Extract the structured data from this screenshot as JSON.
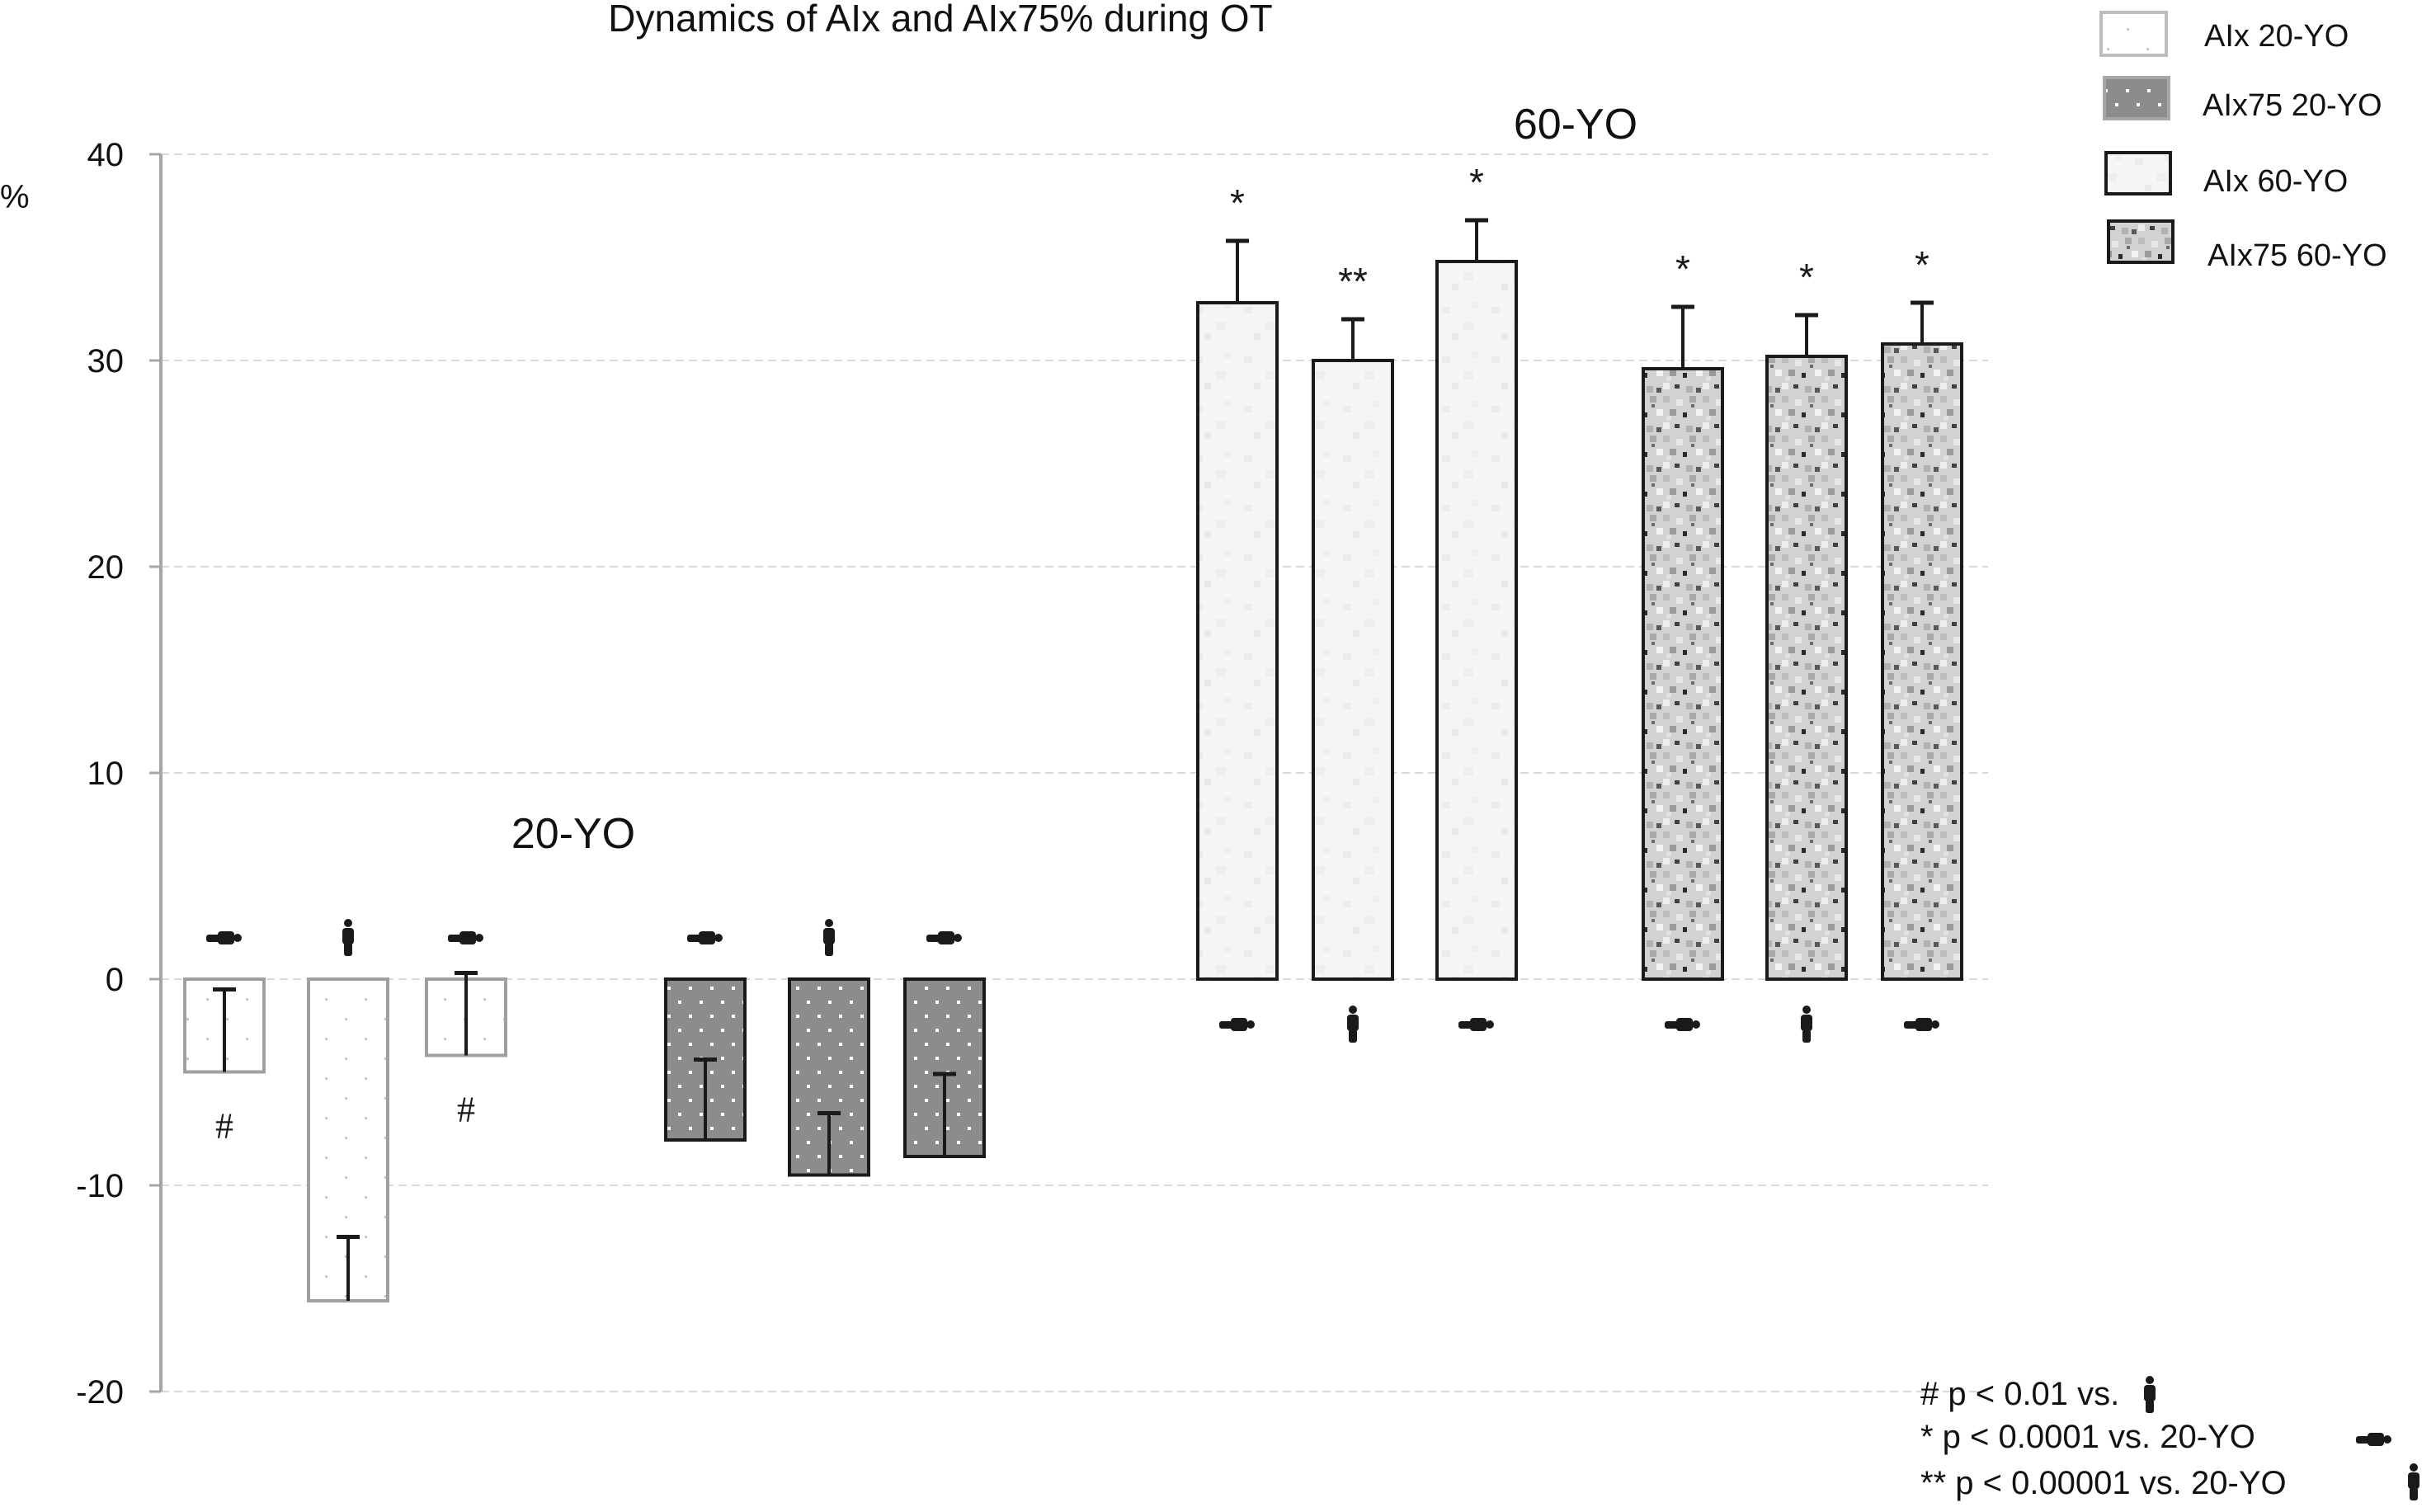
{
  "chart_data": {
    "type": "bar",
    "title": "Dynamics of AIx and AIx75% during OT",
    "ylabel": "%",
    "xlabel": "",
    "ylim": [
      -20,
      40
    ],
    "yticks": [
      40,
      30,
      20,
      10,
      0,
      -10,
      -20
    ],
    "grid": true,
    "legend_position": "top-right",
    "group_labels": [
      {
        "text": "20-YO",
        "near_series": "AIx75 20-YO"
      },
      {
        "text": "60-YO",
        "near_series": "AIx 60-YO"
      }
    ],
    "position_icons": {
      "lying": "supine-person-icon",
      "standing": "standing-person-icon"
    },
    "series": [
      {
        "name": "AIx 20-YO",
        "style": "light-dotted",
        "values": [
          -4.5,
          -15.6,
          -3.7
        ],
        "error": [
          4.0,
          3.1,
          4.0
        ],
        "positions": [
          "lying",
          "standing",
          "lying"
        ],
        "annotations_below": [
          "#",
          "",
          "#"
        ],
        "annotations_above": [
          "",
          "",
          ""
        ]
      },
      {
        "name": "AIx75 20-YO",
        "style": "gray-dotted",
        "values": [
          -7.8,
          -9.5,
          -8.6
        ],
        "error": [
          3.9,
          3.0,
          4.0
        ],
        "positions": [
          "lying",
          "standing",
          "lying"
        ],
        "annotations_below": [
          "",
          "",
          ""
        ],
        "annotations_above": [
          "",
          "",
          ""
        ]
      },
      {
        "name": "AIx 60-YO",
        "style": "light-noise",
        "values": [
          32.8,
          30.0,
          34.8
        ],
        "error": [
          3.0,
          2.0,
          2.0
        ],
        "positions": [
          "lying",
          "standing",
          "lying"
        ],
        "annotations_below": [
          "",
          "",
          ""
        ],
        "annotations_above": [
          "*",
          "**",
          "*"
        ]
      },
      {
        "name": "AIx75 60-YO",
        "style": "dark-noise",
        "values": [
          29.6,
          30.2,
          30.8
        ],
        "error": [
          3.0,
          2.0,
          2.0
        ],
        "positions": [
          "lying",
          "standing",
          "lying"
        ],
        "annotations_below": [
          "",
          "",
          ""
        ],
        "annotations_above": [
          "*",
          "*",
          "*"
        ]
      }
    ],
    "legend": [
      {
        "label": "AIx 20-YO",
        "style": "light-dotted"
      },
      {
        "label": "AIx75 20-YO",
        "style": "gray-dotted"
      },
      {
        "label": "AIx 60-YO",
        "style": "light-noise"
      },
      {
        "label": "AIx75 60-YO",
        "style": "dark-noise"
      }
    ],
    "notes": [
      {
        "text": "# p < 0.01 vs.",
        "icon": "standing"
      },
      {
        "text": "* p < 0.0001 vs. 20-YO",
        "icon": "lying"
      },
      {
        "text": "** p < 0.00001 vs. 20-YO",
        "icon": "standing"
      }
    ]
  },
  "colors": {
    "axis": "#a6a6a6",
    "grid": "#d9d9d9",
    "ink": "#1a1a1a",
    "light_border": "#a0a0a0",
    "gray_fill": "#8c8c8c",
    "light_fill": "#f4f4f4",
    "noise_fill": "#c8c8c8"
  }
}
